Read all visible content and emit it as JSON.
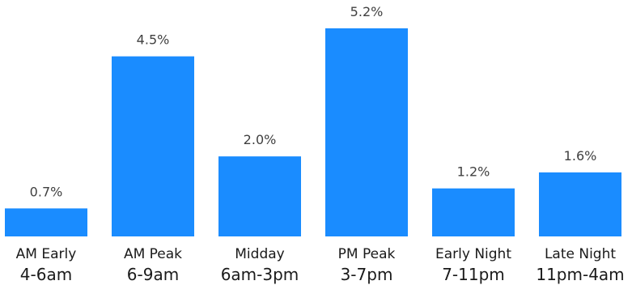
{
  "colors": {
    "bar": "#1a8cff",
    "background": "#ffffff"
  },
  "chart_data": {
    "type": "bar",
    "title": "",
    "xlabel": "",
    "ylabel": "",
    "categories": [
      {
        "name": "AM Early",
        "time": "4-6am"
      },
      {
        "name": "AM Peak",
        "time": "6-9am"
      },
      {
        "name": "Midday",
        "time": "6am-3pm"
      },
      {
        "name": "PM Peak",
        "time": "3-7pm"
      },
      {
        "name": "Early Night",
        "time": "7-11pm"
      },
      {
        "name": "Late Night",
        "time": "11pm-4am"
      }
    ],
    "values": [
      0.7,
      4.5,
      2.0,
      5.2,
      1.2,
      1.6
    ],
    "value_labels": [
      "0.7%",
      "4.5%",
      "2.0%",
      "5.2%",
      "1.2%",
      "1.6%"
    ],
    "ylim": [
      0,
      5.2
    ],
    "grid": false,
    "legend": "none"
  }
}
